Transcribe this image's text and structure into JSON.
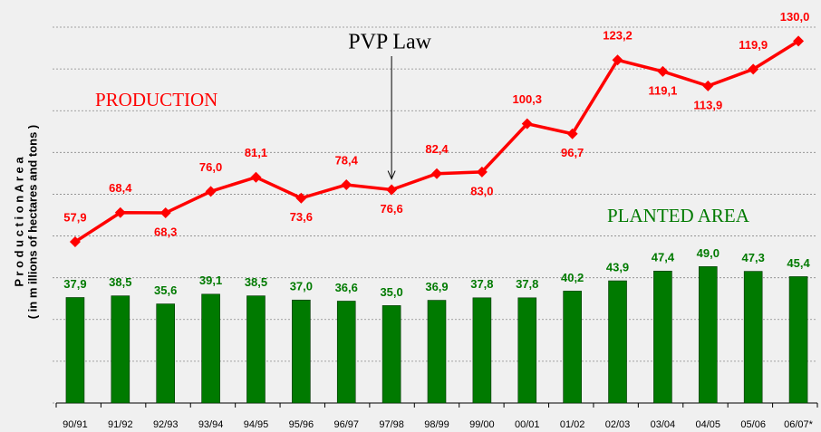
{
  "chart_data": {
    "type": "bar_line",
    "categories": [
      "90/91",
      "91/92",
      "92/93",
      "93/94",
      "94/95",
      "95/96",
      "96/97",
      "97/98",
      "98/99",
      "99/00",
      "00/01",
      "01/02",
      "02/03",
      "03/04",
      "04/05",
      "05/06",
      "06/07*"
    ],
    "series": [
      {
        "name": "PRODUCTION",
        "type": "line",
        "color": "#ff0000",
        "values": [
          57.9,
          68.4,
          68.3,
          76.0,
          81.1,
          73.6,
          78.4,
          76.6,
          82.4,
          83.0,
          100.3,
          96.7,
          123.2,
          119.1,
          113.9,
          119.9,
          130.0
        ],
        "value_labels": [
          "57,9",
          "68,4",
          "68,3",
          "76,0",
          "81,1",
          "73,6",
          "78,4",
          "76,6",
          "82,4",
          "83,0",
          "100,3",
          "96,7",
          "123,2",
          "119,1",
          "113,9",
          "119,9",
          "130,0"
        ]
      },
      {
        "name": "PLANTED AREA",
        "type": "bar",
        "color": "#007a00",
        "values": [
          37.9,
          38.5,
          35.6,
          39.1,
          38.5,
          37.0,
          36.6,
          35.0,
          36.9,
          37.8,
          37.8,
          40.2,
          43.9,
          47.4,
          49.0,
          47.3,
          45.4
        ],
        "value_labels": [
          "37,9",
          "38,5",
          "35,6",
          "39,1",
          "38,5",
          "37,0",
          "36,6",
          "35,0",
          "36,9",
          "37,8",
          "37,8",
          "40,2",
          "43,9",
          "47,4",
          "49,0",
          "47,3",
          "45,4"
        ]
      }
    ],
    "y_label": [
      "P r o d u c t i o n   A r e a",
      "( in m illions  of hectares  and  tons )"
    ],
    "annotation": {
      "text": "PVP Law",
      "category_index": 7
    },
    "ylim": [
      0,
      135
    ],
    "yticks": [
      0,
      15,
      30,
      45,
      60,
      75,
      90,
      105,
      120,
      135
    ],
    "grid": true
  }
}
